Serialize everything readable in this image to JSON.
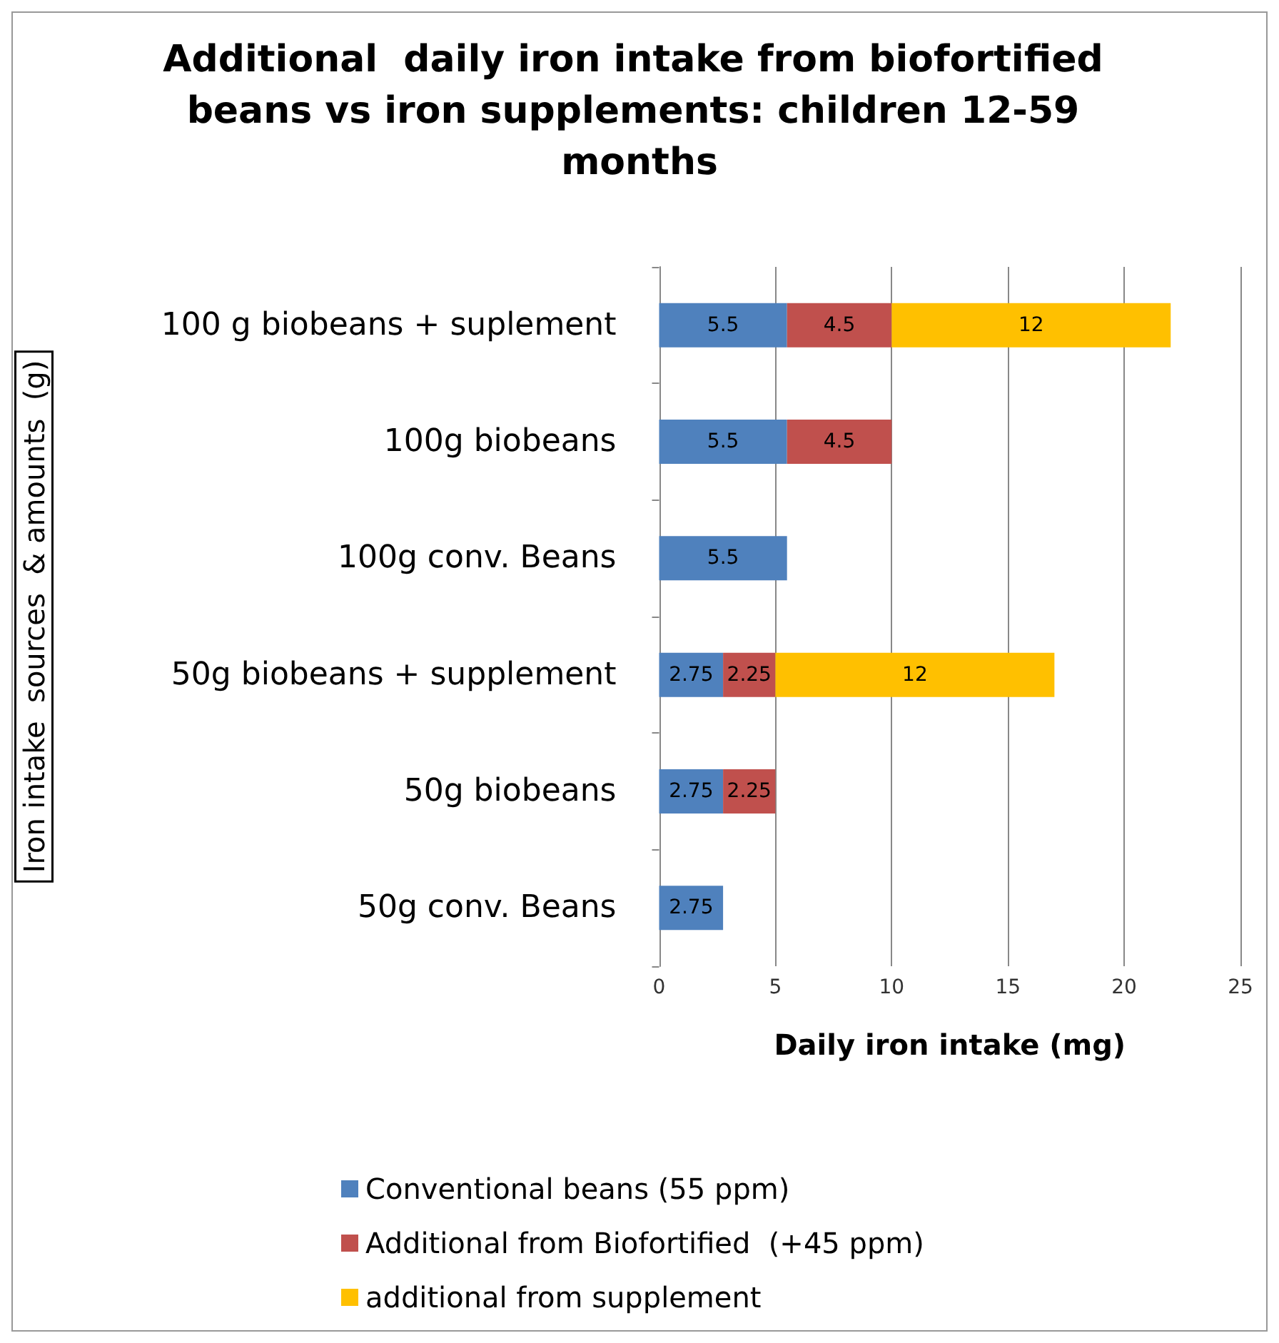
{
  "chart_data": {
    "type": "bar",
    "orientation": "horizontal",
    "stacked": true,
    "title": "Additional  daily iron intake from biofortified beans vs iron supplements: children 12-59 months",
    "xlabel": "Daily iron intake (mg)",
    "ylabel": "Iron intake  sources  & amounts  (g)",
    "categories": [
      "100 g biobeans + suplement",
      "100g biobeans",
      "100g conv. Beans",
      "50g biobeans + supplement",
      "50g biobeans",
      "50g conv. Beans"
    ],
    "series": [
      {
        "name": "Conventional beans (55 ppm)",
        "color": "#4f81bd",
        "values": [
          5.5,
          5.5,
          5.5,
          2.75,
          2.75,
          2.75
        ]
      },
      {
        "name": "Additional from Biofortified  (+45 ppm)",
        "color": "#c0504d",
        "values": [
          4.5,
          4.5,
          null,
          2.25,
          2.25,
          null
        ]
      },
      {
        "name": "additional from supplement",
        "color": "#ffc000",
        "values": [
          12,
          null,
          null,
          12,
          null,
          null
        ]
      }
    ],
    "xlim": [
      0,
      25
    ],
    "xticks": [
      0,
      5,
      10,
      15,
      20,
      25
    ],
    "grid": "x",
    "legend": "bottom",
    "data_labels": true
  }
}
